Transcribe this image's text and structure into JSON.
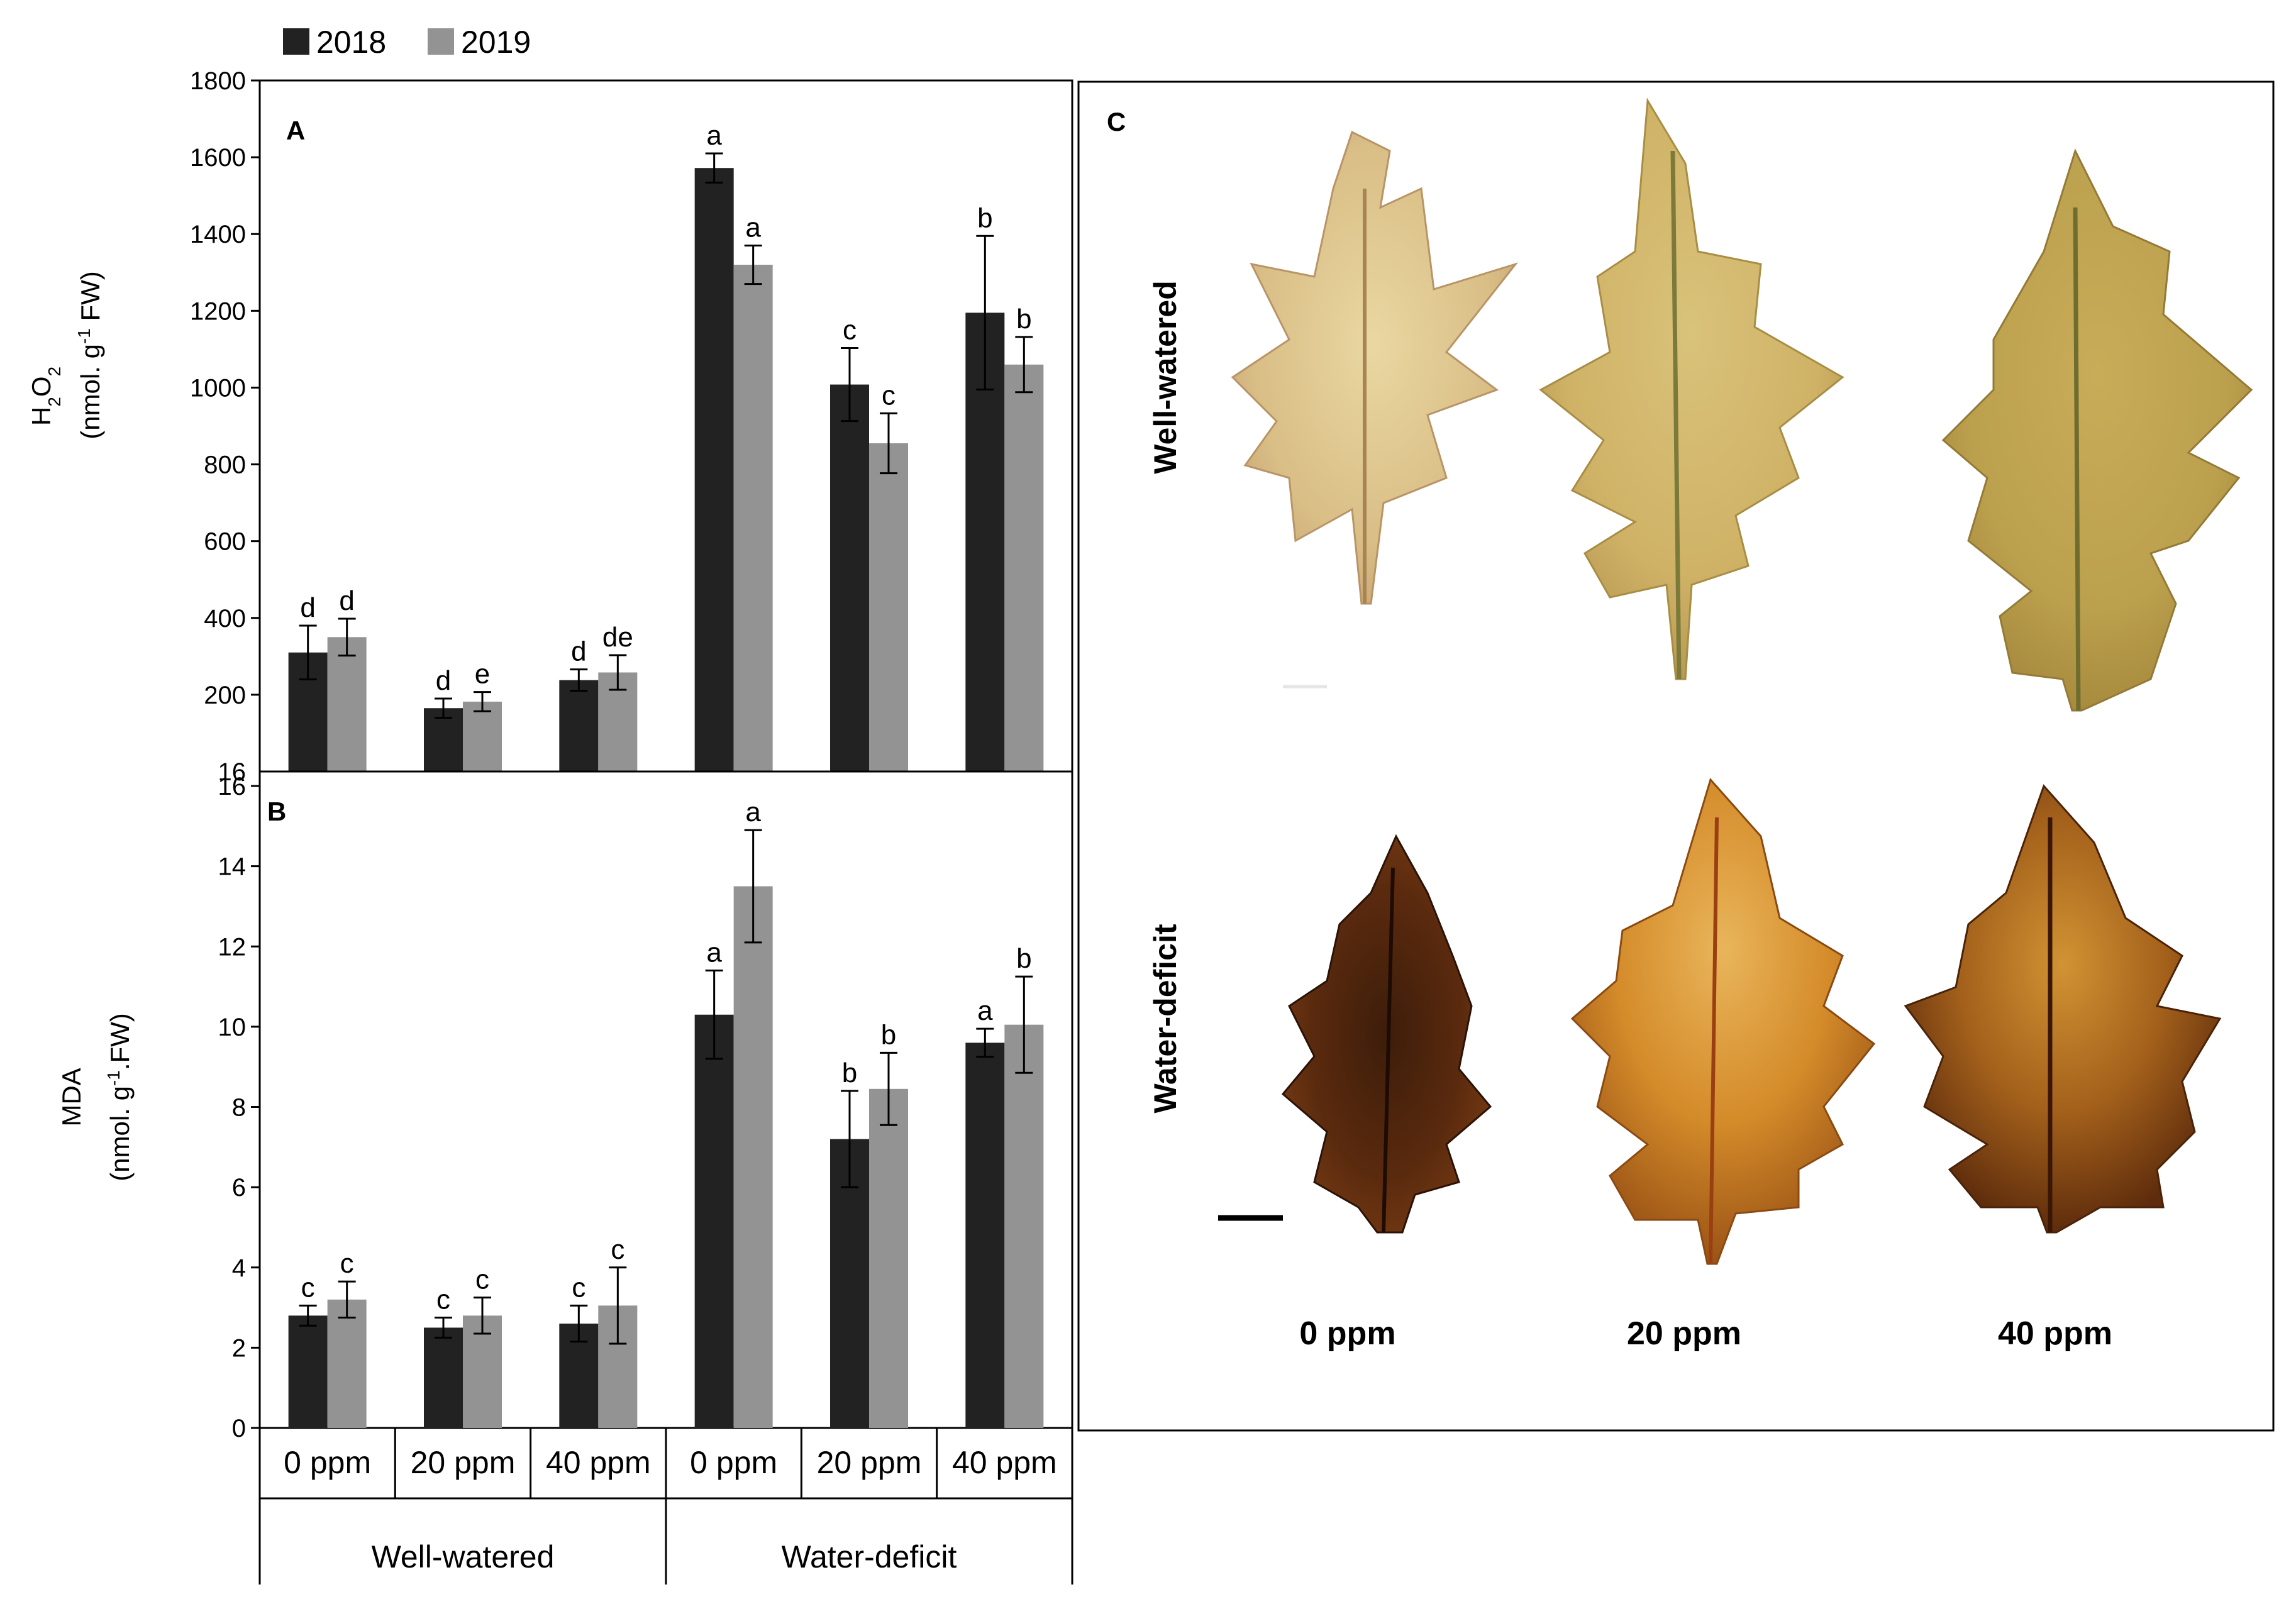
{
  "colors": {
    "s2018": "#222222",
    "s2019": "#939393",
    "axis": "#000000"
  },
  "legend": [
    {
      "label": "2018",
      "color": "#222222"
    },
    {
      "label": "2019",
      "color": "#939393"
    }
  ],
  "chart_data": [
    {
      "id": "A",
      "panel_label": "A",
      "type": "bar",
      "ylabel": {
        "line1": "H",
        "sub1": "2",
        "mid": "O",
        "sub2": "2",
        "line2a": "(nmol. g",
        "sup": "-1",
        "line2b": " FW)"
      },
      "ylim": [
        0,
        1800
      ],
      "yticks": [
        200,
        400,
        600,
        800,
        1000,
        1200,
        1400,
        1600,
        1800
      ],
      "overlap_tick_label": "16",
      "categories": [
        "0 ppm",
        "20 ppm",
        "40 ppm",
        "0 ppm",
        "20 ppm",
        "40 ppm"
      ],
      "series": [
        {
          "name": "2018",
          "values": [
            310,
            165,
            238,
            1572,
            1008,
            1195
          ],
          "errors": [
            70,
            25,
            28,
            38,
            95,
            200
          ],
          "letters": [
            "d",
            "d",
            "d",
            "a",
            "c",
            "b"
          ]
        },
        {
          "name": "2019",
          "values": [
            350,
            182,
            258,
            1320,
            855,
            1060
          ],
          "errors": [
            48,
            25,
            45,
            50,
            78,
            72
          ],
          "letters": [
            "d",
            "e",
            "de",
            "a",
            "c",
            "b"
          ]
        }
      ]
    },
    {
      "id": "B",
      "panel_label": "B",
      "type": "bar",
      "ylabel": {
        "line1": "MDA",
        "line2a": "(nmol. g",
        "sup": "-1",
        "line2b": ".FW)"
      },
      "ylim": [
        0,
        16
      ],
      "yticks": [
        0,
        2,
        4,
        6,
        8,
        10,
        12,
        14,
        16
      ],
      "categories": [
        "0 ppm",
        "20 ppm",
        "40 ppm",
        "0 ppm",
        "20 ppm",
        "40 ppm"
      ],
      "groups": [
        "Well-watered",
        "Water-deficit"
      ],
      "series": [
        {
          "name": "2018",
          "values": [
            2.8,
            2.5,
            2.6,
            10.3,
            7.2,
            9.6
          ],
          "errors": [
            0.25,
            0.25,
            0.45,
            1.1,
            1.2,
            0.35
          ],
          "letters": [
            "c",
            "c",
            "c",
            "a",
            "b",
            "a"
          ]
        },
        {
          "name": "2019",
          "values": [
            3.2,
            2.8,
            3.05,
            13.5,
            8.45,
            10.05
          ],
          "errors": [
            0.45,
            0.45,
            0.95,
            1.4,
            0.9,
            1.2
          ],
          "letters": [
            "c",
            "c",
            "c",
            "a",
            "b",
            "b"
          ]
        }
      ]
    }
  ],
  "panel_c": {
    "label": "C",
    "rows": [
      "Well-watered",
      "Water-deficit"
    ],
    "columns": [
      "0 ppm",
      "20 ppm",
      "40 ppm"
    ]
  }
}
